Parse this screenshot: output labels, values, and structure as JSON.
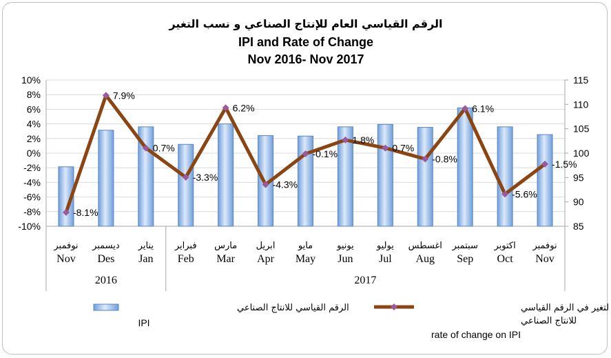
{
  "title": {
    "arabic": "الرقم القياسي العام للإنتاج الصناعي و نسب التغير",
    "line2": "IPI and Rate of Change",
    "line3": "Nov 2016- Nov 2017"
  },
  "colors": {
    "bar_fill_top": "#dce9f9",
    "bar_fill_bottom": "#6f9fdc",
    "bar_stroke": "#5b86c0",
    "line": "#8b4513",
    "marker": "#9b5a9b",
    "grid": "#d9d9d9"
  },
  "chart_data": {
    "type": "bar+line",
    "categories_ar": [
      "نوفمبر",
      "ديسمبر",
      "يناير",
      "فبراير",
      "مارس",
      "ابريل",
      "مايو",
      "يونيو",
      "يوليو",
      "اغسطس",
      "سبتمبر",
      "اكتوبر",
      "نوفمبر"
    ],
    "categories_en": [
      "Nov",
      "Des",
      "Jan",
      "Feb",
      "Mar",
      "Apr",
      "May",
      "Jun",
      "Jul",
      "Aug",
      "Sep",
      "Oct",
      "Nov"
    ],
    "year_groups": [
      {
        "label": "2016",
        "span": 3
      },
      {
        "label": "2017",
        "span": 10
      }
    ],
    "series": [
      {
        "name": "الرقم القياسي للانتاج الصناعي",
        "name_en": "IPI",
        "type": "bar",
        "axis": "right",
        "values": [
          97.2,
          104.7,
          105.4,
          101.8,
          106.0,
          103.6,
          103.5,
          105.4,
          105.9,
          105.3,
          109.3,
          105.4,
          103.8
        ]
      },
      {
        "name": "نسبة التغير في الرقم القياسي للانتاج الصناعي",
        "name_en": "rate of change on IPI",
        "type": "line",
        "axis": "left",
        "values": [
          -8.1,
          7.9,
          0.7,
          -3.3,
          6.2,
          -4.3,
          -0.1,
          1.8,
          0.7,
          -0.8,
          6.1,
          -5.6,
          -1.5
        ],
        "labels": [
          "-8.1%",
          "7.9%",
          "0.7%",
          "-3.3%",
          "6.2%",
          "-4.3%",
          "-0.1%",
          "1.8%",
          "0.7%",
          "-0.8%",
          "6.1%",
          "-5.6%",
          "-1.5%"
        ]
      }
    ],
    "y_left": {
      "min": -10,
      "max": 10,
      "step": 2,
      "tick_labels": [
        "10%",
        "8%",
        "6%",
        "4%",
        "2%",
        "0%",
        "-2%",
        "-4%",
        "-6%",
        "-8%",
        "-10%"
      ]
    },
    "y_right": {
      "min": 85,
      "max": 115,
      "step": 5,
      "tick_labels": [
        "115",
        "110",
        "105",
        "100",
        "95",
        "90",
        "85"
      ]
    },
    "grid": true,
    "legend_position": "bottom"
  },
  "legend": {
    "bar_label_ar": "الرقم القياسي للانتاج الصناعي",
    "bar_label_en": "IPI",
    "line_label_ar_1": "نسبة التغير في الرقم القياسي",
    "line_label_ar_2": "للانتاج الصناعي",
    "line_label_en": "rate of change on IPI"
  }
}
